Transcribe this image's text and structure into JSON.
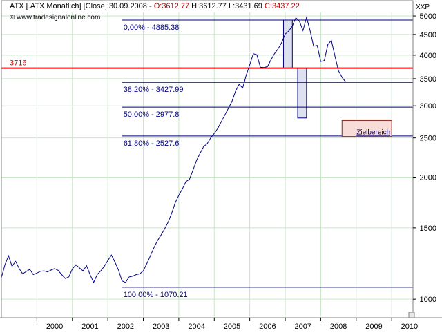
{
  "header": {
    "instrument": "ATX [.ATX Monatlich] [Close] 30.09.2008 - ",
    "open": "O:3612.77",
    "high": "H:3612.77",
    "low": "L:3431.69",
    "close": "C:3437.22",
    "website": "© www.tradesignalonline.com",
    "corner_label": "XXP"
  },
  "colors": {
    "price_line": "#000080",
    "fib_line": "#000080",
    "fib_text": "#000080",
    "support_line": "#dd0000",
    "grid": "#c8e6c8",
    "target_box_fill": "#f8dcd8",
    "bar_fill": "#dde0f0"
  },
  "chart_data": {
    "type": "line",
    "title": "ATX [.ATX Monatlich] [Close] 30.09.2008",
    "y_scale": "log",
    "ylim": [
      900,
      5100
    ],
    "xlim": [
      1999.0,
      2010.6
    ],
    "y_ticks": [
      5000,
      4500,
      4000,
      3500,
      3000,
      2500,
      2000,
      1500,
      1000
    ],
    "x_ticks": [
      "2000",
      "2001",
      "2002",
      "2003",
      "2004",
      "2005",
      "2006",
      "2007",
      "2008",
      "2009",
      "2010"
    ],
    "series": [
      {
        "x": [
          1999.0,
          1999.1,
          1999.2,
          1999.3,
          1999.4,
          1999.5,
          1999.6,
          1999.7,
          1999.8,
          1999.9,
          2000.0,
          2000.1,
          2000.2,
          2000.3,
          2000.4,
          2000.5,
          2000.6,
          2000.7,
          2000.8,
          2000.9,
          2001.0,
          2001.1,
          2001.2,
          2001.3,
          2001.4,
          2001.5,
          2001.6,
          2001.7,
          2001.8,
          2001.9,
          2002.0,
          2002.1,
          2002.2,
          2002.3,
          2002.4,
          2002.5,
          2002.6,
          2002.7,
          2002.8,
          2002.9,
          2003.0,
          2003.1,
          2003.2,
          2003.3,
          2003.4,
          2003.5,
          2003.6,
          2003.7,
          2003.8,
          2003.9,
          2004.0,
          2004.1,
          2004.2,
          2004.3,
          2004.4,
          2004.5,
          2004.6,
          2004.7,
          2004.8,
          2004.9,
          2005.0,
          2005.1,
          2005.2,
          2005.3,
          2005.4,
          2005.5,
          2005.6,
          2005.7,
          2005.8,
          2005.9,
          2006.0,
          2006.1,
          2006.2,
          2006.3,
          2006.4,
          2006.5,
          2006.6,
          2006.7,
          2006.8,
          2006.9,
          2007.0,
          2007.1,
          2007.2,
          2007.3,
          2007.4,
          2007.5,
          2007.6,
          2007.7,
          2007.8,
          2007.9,
          2008.0,
          2008.1,
          2008.2,
          2008.3,
          2008.4,
          2008.5,
          2008.6,
          2008.7
        ],
        "y": [
          1130,
          1215,
          1280,
          1205,
          1240,
          1190,
          1155,
          1170,
          1185,
          1150,
          1160,
          1172,
          1175,
          1168,
          1180,
          1190,
          1178,
          1150,
          1125,
          1135,
          1188,
          1215,
          1195,
          1175,
          1210,
          1150,
          1100,
          1150,
          1175,
          1205,
          1245,
          1285,
          1235,
          1180,
          1110,
          1100,
          1135,
          1140,
          1150,
          1155,
          1175,
          1225,
          1280,
          1340,
          1395,
          1440,
          1490,
          1550,
          1630,
          1730,
          1805,
          1870,
          1950,
          1975,
          2080,
          2200,
          2290,
          2380,
          2420,
          2500,
          2565,
          2640,
          2745,
          2850,
          2960,
          3080,
          3260,
          3390,
          3320,
          3570,
          3790,
          4035,
          4010,
          3735,
          3730,
          3750,
          3900,
          4040,
          4150,
          4300,
          4510,
          4590,
          4720,
          4950,
          4850,
          4600,
          4960,
          4600,
          4210,
          4230,
          3860,
          3880,
          4250,
          4350,
          3980,
          3660,
          3530,
          3437
        ]
      }
    ],
    "fib_levels": [
      {
        "label": "0,00% - 4885.38",
        "value": 4885.38
      },
      {
        "label": "38,20% - 3427.99",
        "value": 3427.99
      },
      {
        "label": "50,00% - 2977.8",
        "value": 2977.8
      },
      {
        "label": "61,80% - 2527.6",
        "value": 2527.6
      },
      {
        "label": "100,00% - 1070.21",
        "value": 1070.21
      }
    ],
    "support": {
      "label": "3716",
      "value": 3716
    },
    "target": {
      "label": "Zielbereich",
      "x0": 2008.6,
      "x1": 2010.0,
      "y0": 2520,
      "y1": 2760
    },
    "bars": [
      {
        "x0": 2006.95,
        "x1": 2007.2,
        "y0": 3716,
        "y1": 4885
      },
      {
        "x0": 2007.35,
        "x1": 2007.6,
        "y0": 2800,
        "y1": 3716
      }
    ]
  }
}
